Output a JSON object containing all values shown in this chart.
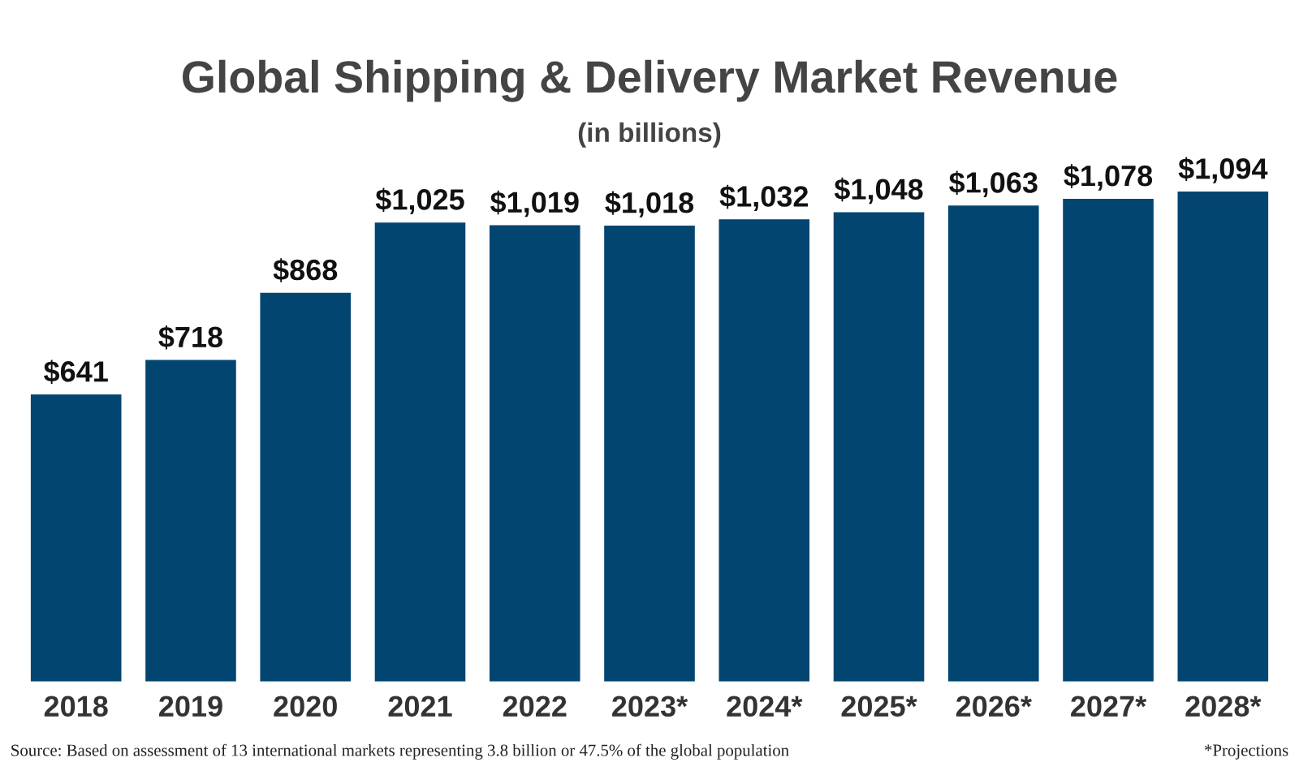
{
  "chart_data": {
    "type": "bar",
    "title": "Global Shipping & Delivery Market Revenue",
    "subtitle": "(in billions)",
    "categories": [
      "2018",
      "2019",
      "2020",
      "2021",
      "2022",
      "2023*",
      "2024*",
      "2025*",
      "2026*",
      "2027*",
      "2028*"
    ],
    "values": [
      641,
      718,
      868,
      1025,
      1019,
      1018,
      1032,
      1048,
      1063,
      1078,
      1094
    ],
    "value_labels": [
      "$641",
      "$718",
      "$868",
      "$1,025",
      "$1,019",
      "$1,018",
      "$1,032",
      "$1,048",
      "$1,063",
      "$1,078",
      "$1,094"
    ],
    "color": "#024571",
    "tick_labels": "x",
    "grid": false,
    "legend": false,
    "annotations": [
      "Source: Based on assessment of 13 international markets representing 3.8 billion or 47.5% of the global population",
      "*Projections"
    ]
  }
}
